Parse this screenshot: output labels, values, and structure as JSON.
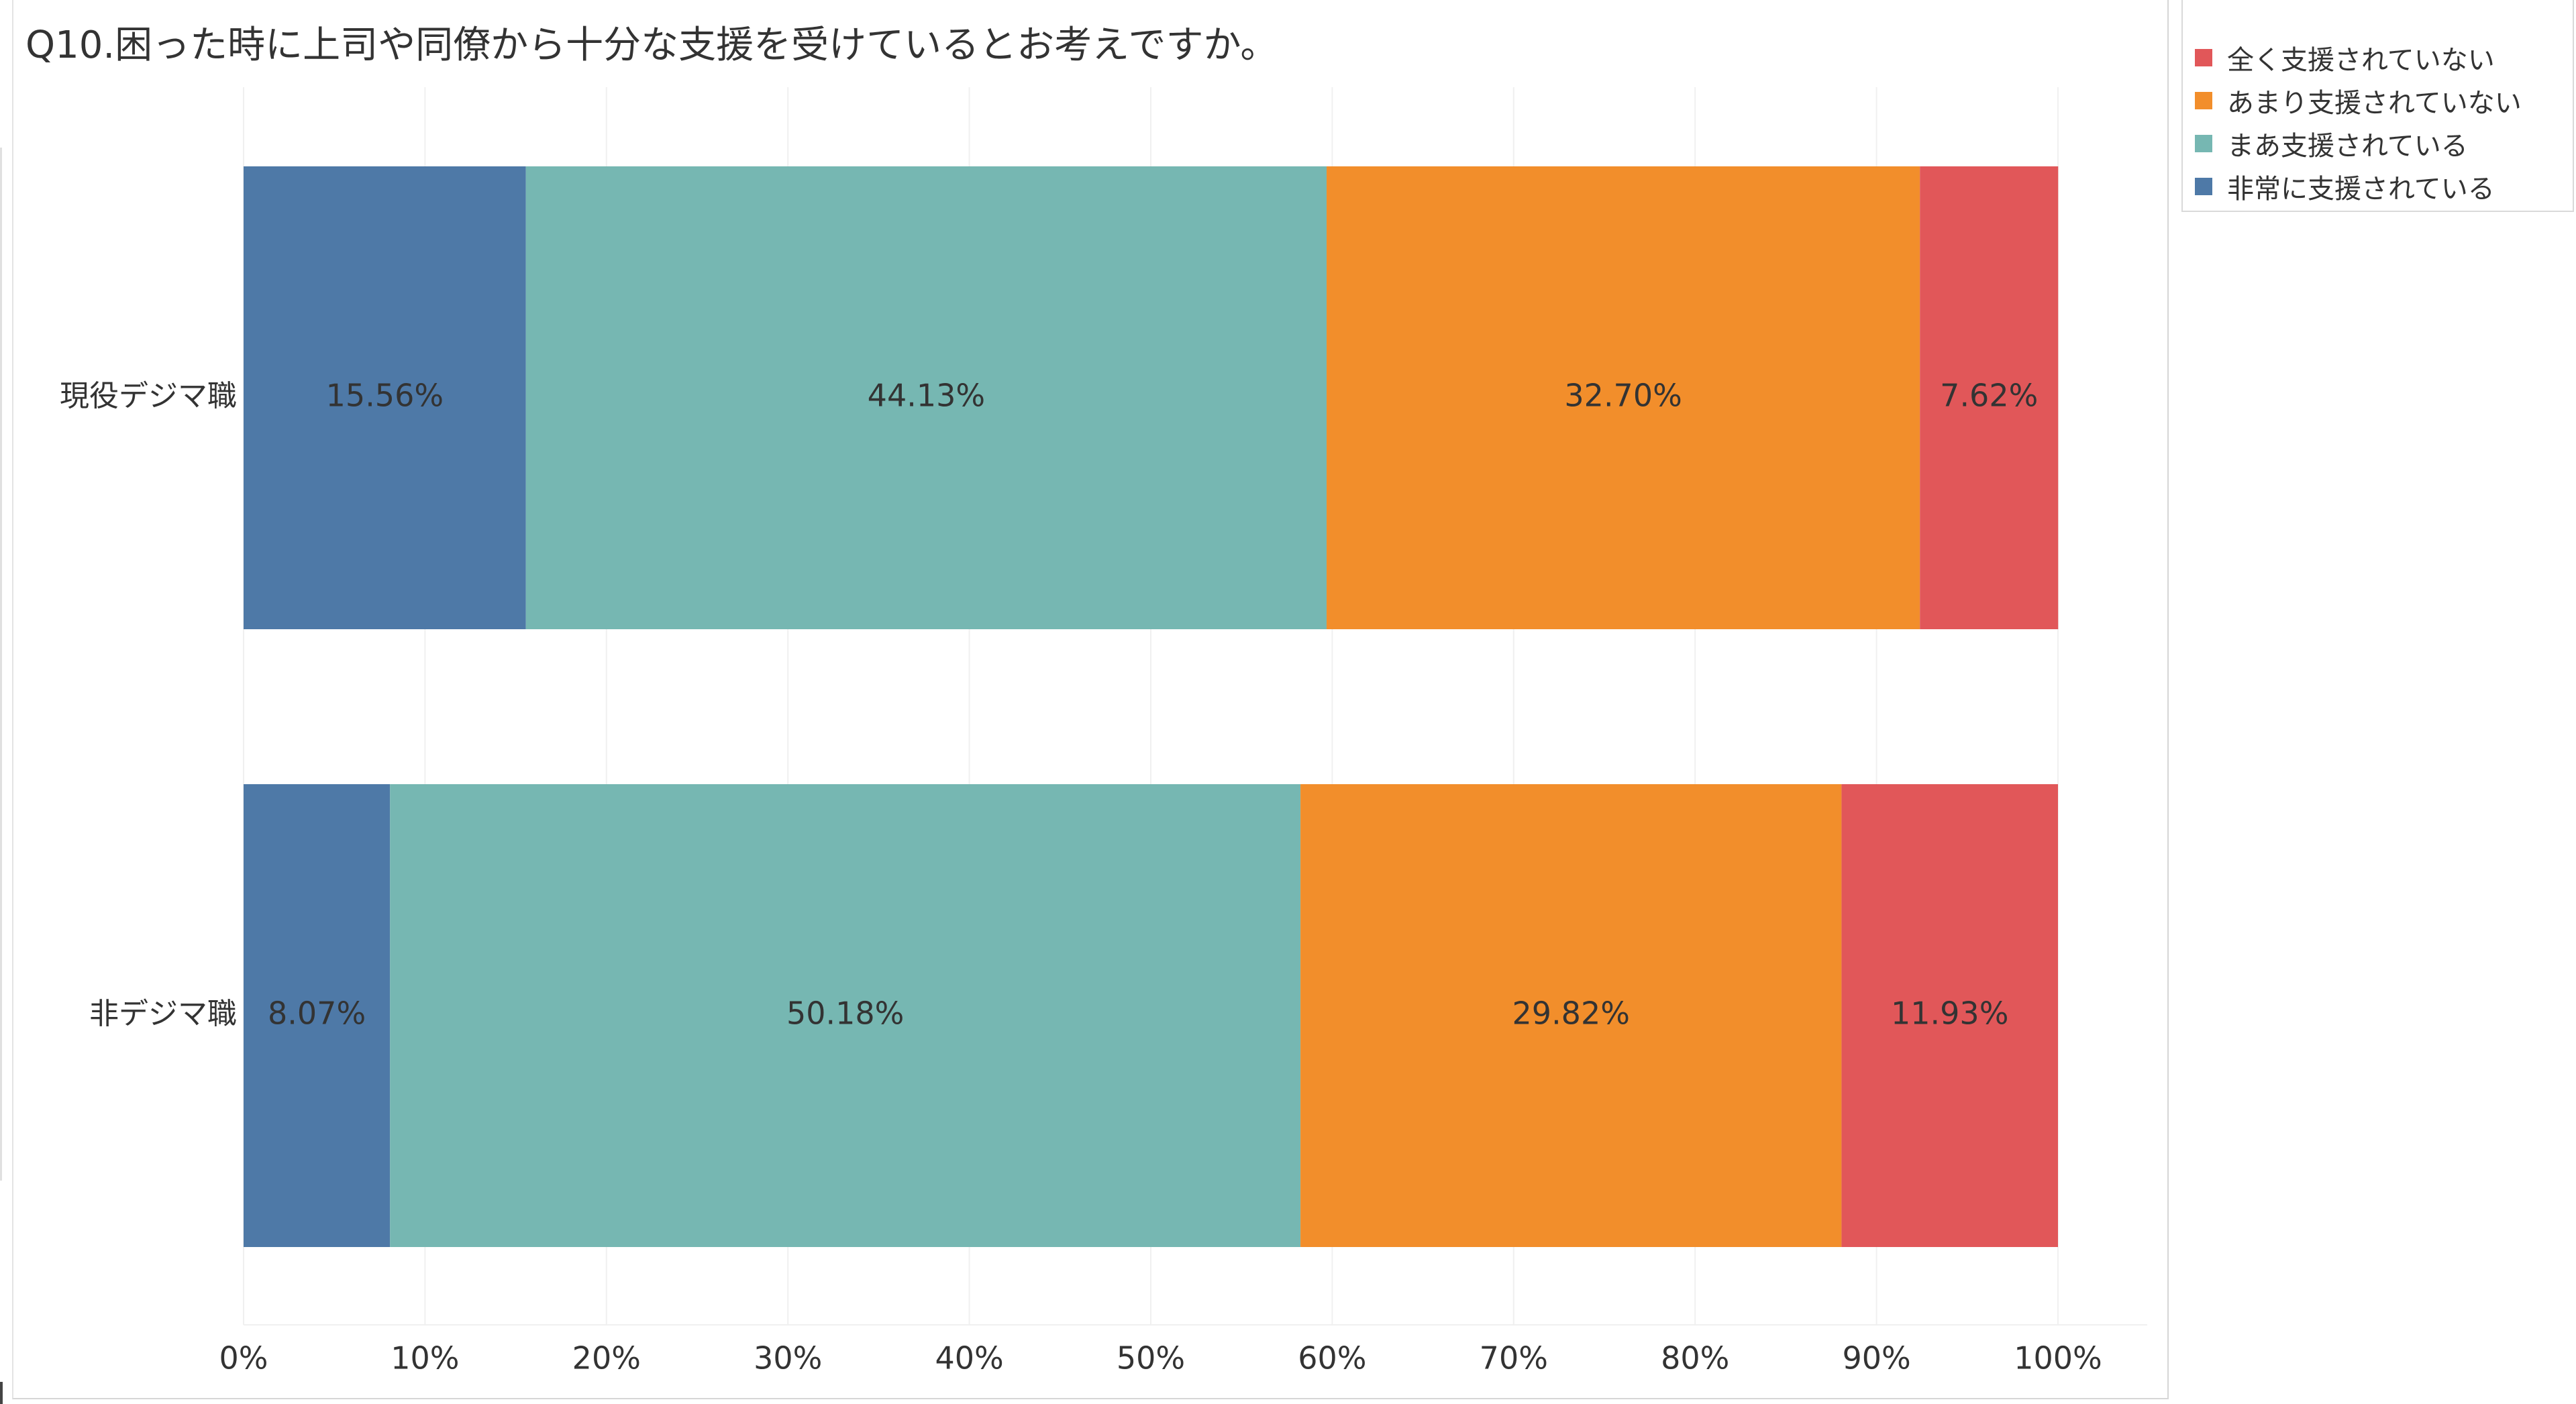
{
  "title": "Q10.困った時に上司や同僚から十分な支援を受けているとお考えですか。",
  "legend": {
    "items": [
      {
        "label": "全く支援されていない",
        "color": "#e15759"
      },
      {
        "label": "あまり支援されていない",
        "color": "#f28e2b"
      },
      {
        "label": "まあ支援されている",
        "color": "#76b7b2"
      },
      {
        "label": "非常に支援されている",
        "color": "#4e79a7"
      }
    ]
  },
  "chart_data": {
    "type": "bar",
    "orientation": "horizontal",
    "stacked": true,
    "categories": [
      "現役デジマ職",
      "非デジマ職"
    ],
    "series": [
      {
        "name": "非常に支援されている",
        "color": "#4e79a7",
        "values": [
          15.56,
          8.07
        ],
        "labels": [
          "15.56%",
          "8.07%"
        ]
      },
      {
        "name": "まあ支援されている",
        "color": "#76b7b2",
        "values": [
          44.13,
          50.18
        ],
        "labels": [
          "44.13%",
          "50.18%"
        ]
      },
      {
        "name": "あまり支援されていない",
        "color": "#f28e2b",
        "values": [
          32.7,
          29.82
        ],
        "labels": [
          "32.70%",
          "29.82%"
        ]
      },
      {
        "name": "全く支援されていない",
        "color": "#e15759",
        "values": [
          7.62,
          11.93
        ],
        "labels": [
          "7.62%",
          "11.93%"
        ]
      }
    ],
    "xlim": [
      0,
      100
    ],
    "xticks": [
      0,
      10,
      20,
      30,
      40,
      50,
      60,
      70,
      80,
      90,
      100
    ],
    "xtick_labels": [
      "0%",
      "10%",
      "20%",
      "30%",
      "40%",
      "50%",
      "60%",
      "70%",
      "80%",
      "90%",
      "100%"
    ],
    "grid": true,
    "legend_position": "top-right"
  }
}
